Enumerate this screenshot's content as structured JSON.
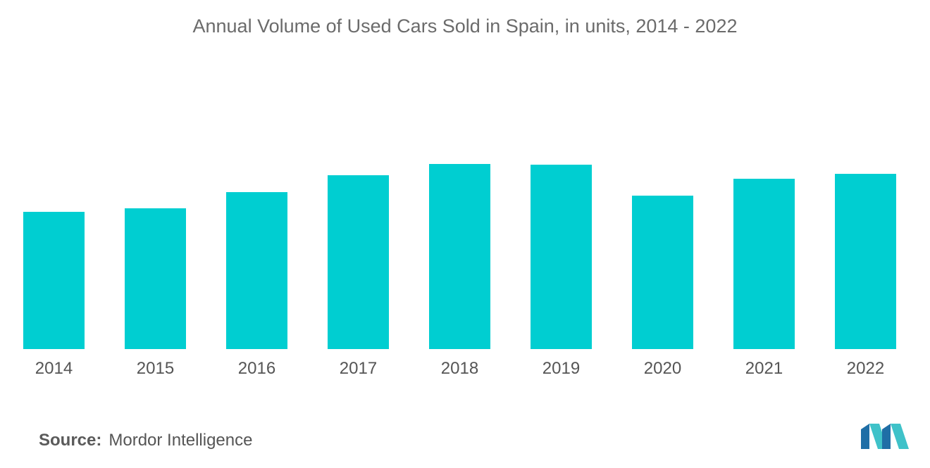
{
  "source": {
    "label": "Source:",
    "name": "Mordor Intelligence"
  },
  "logo": {
    "icon": "mordor-intelligence-logo-icon",
    "colors": [
      "#1f6ea6",
      "#3fc2c9"
    ]
  },
  "chart_data": {
    "type": "bar",
    "title": "Annual Volume of Used Cars Sold in Spain, in units, 2014 - 2022",
    "xlabel": "",
    "ylabel": "",
    "categories": [
      "2014",
      "2015",
      "2016",
      "2017",
      "2018",
      "2019",
      "2020",
      "2021",
      "2022"
    ],
    "values": [
      1.95,
      2.0,
      2.23,
      2.47,
      2.63,
      2.62,
      2.18,
      2.42,
      2.49
    ],
    "ylim": [
      0,
      4.0
    ],
    "grid": false,
    "legend": "none",
    "bar_color": "#00ced1"
  }
}
